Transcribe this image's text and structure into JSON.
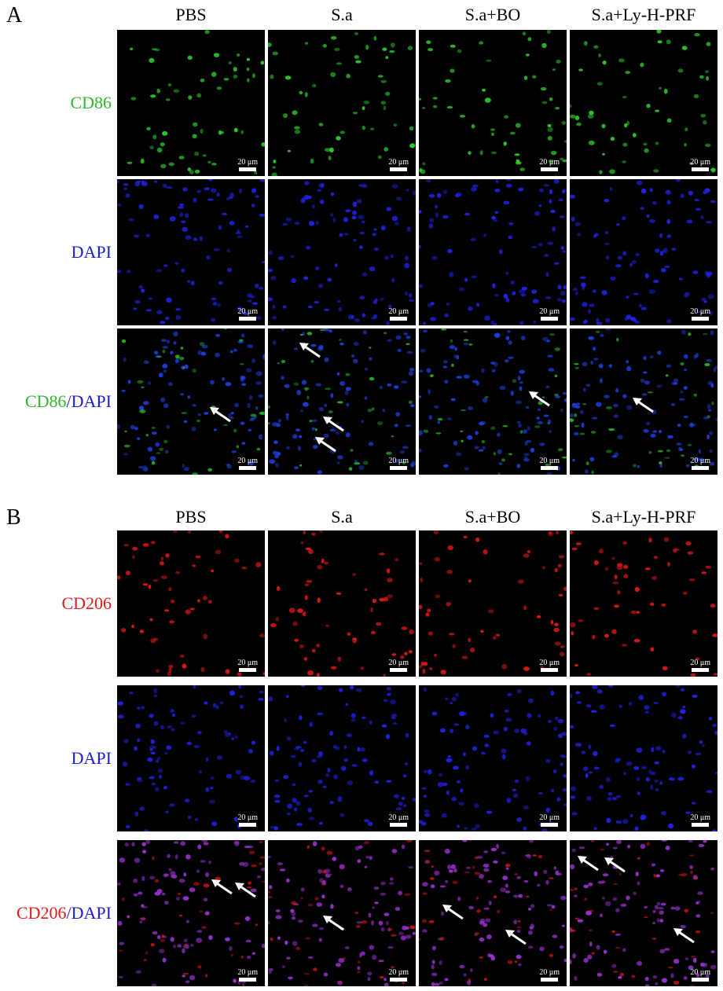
{
  "panels": [
    {
      "letter": "A",
      "columns": [
        "PBS",
        "S.a",
        "S.a+BO",
        "S.a+Ly-H-PRF"
      ],
      "rows": [
        {
          "label_parts": [
            {
              "text": "CD86",
              "color": "#2eb82e"
            }
          ],
          "stain": "green"
        },
        {
          "label_parts": [
            {
              "text": "DAPI",
              "color": "#1c1cd6"
            }
          ],
          "stain": "blue"
        },
        {
          "label_parts": [
            {
              "text": "CD86",
              "color": "#2eb82e"
            },
            {
              "text": "/",
              "color": "#1c1cd6"
            },
            {
              "text": "DAPI",
              "color": "#1c1cd6"
            }
          ],
          "stain": "merge-green"
        }
      ]
    },
    {
      "letter": "B",
      "columns": [
        "PBS",
        "S.a",
        "S.a+BO",
        "S.a+Ly-H-PRF"
      ],
      "rows": [
        {
          "label_parts": [
            {
              "text": "CD206",
              "color": "#e01b1b"
            }
          ],
          "stain": "red"
        },
        {
          "label_parts": [
            {
              "text": "DAPI",
              "color": "#1c1cd6"
            }
          ],
          "stain": "blue"
        },
        {
          "label_parts": [
            {
              "text": "CD206",
              "color": "#e01b1b"
            },
            {
              "text": "/",
              "color": "#1c1cd6"
            },
            {
              "text": "DAPI",
              "color": "#1c1cd6"
            }
          ],
          "stain": "merge-red"
        }
      ]
    }
  ],
  "scale_bar_text": "20 μm",
  "stain_colors": {
    "green": "#2fd12f",
    "blue": "#2222ee",
    "red": "#e81818",
    "merge_green_cell": "#1f3fe0",
    "merge_red_cell": "#a032d8"
  }
}
